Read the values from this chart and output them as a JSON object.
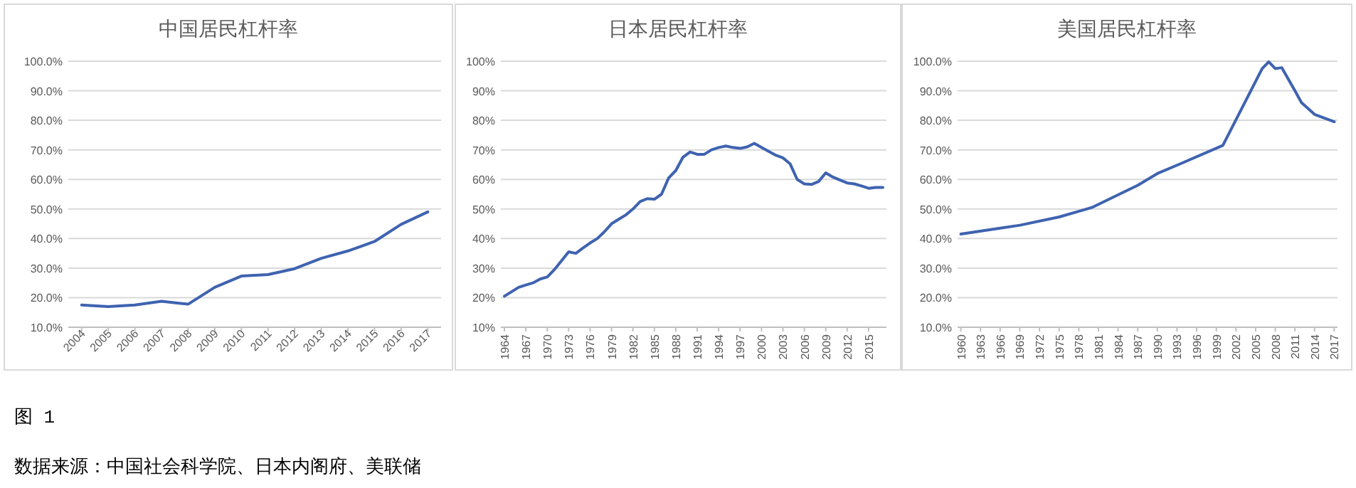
{
  "chart_data": [
    {
      "type": "line",
      "title": "中国居民杠杆率",
      "x": [
        2004,
        2005,
        2006,
        2007,
        2008,
        2009,
        2010,
        2011,
        2012,
        2013,
        2014,
        2015,
        2016,
        2017
      ],
      "series": [
        {
          "color": "#3f63b0",
          "values": [
            17.5,
            17,
            17.5,
            18.8,
            17.8,
            23.5,
            27.3,
            27.8,
            29.8,
            33.3,
            35.8,
            39,
            44.8,
            49
          ]
        }
      ],
      "xlim": [
        2003.5,
        2017.5
      ],
      "xticks": [
        2004,
        2005,
        2006,
        2007,
        2008,
        2009,
        2010,
        2011,
        2012,
        2013,
        2014,
        2015,
        2016,
        2017
      ],
      "ylim": [
        10,
        100
      ],
      "yticks": [
        {
          "value": 10,
          "label": "10.0%"
        },
        {
          "value": 20,
          "label": "20.0%"
        },
        {
          "value": 30,
          "label": "30.0%"
        },
        {
          "value": 40,
          "label": "40.0%"
        },
        {
          "value": 50,
          "label": "50.0%"
        },
        {
          "value": 60,
          "label": "60.0%"
        },
        {
          "value": 70,
          "label": "70.0%"
        },
        {
          "value": 80,
          "label": "80.0%"
        },
        {
          "value": 90,
          "label": "90.0%"
        },
        {
          "value": 100,
          "label": "100.0%"
        }
      ],
      "grid": "y",
      "marker": "none",
      "line_style": "solid",
      "annotations": [
        "图 1",
        "数据来源：中国社会科学院、日本内阁府、美联储"
      ]
    },
    {
      "type": "line",
      "title": "日本居民杠杆率",
      "x": [
        1964,
        1965,
        1966,
        1967,
        1968,
        1969,
        1970,
        1971,
        1972,
        1973,
        1974,
        1975,
        1976,
        1977,
        1978,
        1979,
        1980,
        1981,
        1982,
        1983,
        1984,
        1985,
        1986,
        1987,
        1988,
        1989,
        1990,
        1991,
        1992,
        1993,
        1994,
        1995,
        1996,
        1997,
        1998,
        1999,
        2000,
        2001,
        2002,
        2003,
        2004,
        2005,
        2006,
        2007,
        2008,
        2009,
        2010,
        2011,
        2012,
        2013,
        2014,
        2015,
        2016,
        2017
      ],
      "series": [
        {
          "color": "#3f63b0",
          "values": [
            20.5,
            22,
            23.5,
            24.3,
            25,
            26.3,
            27,
            29.5,
            32.5,
            35.5,
            35,
            36.8,
            38.5,
            40,
            42.3,
            45,
            46.5,
            48,
            50,
            52.5,
            53.5,
            53.3,
            55,
            60.5,
            63,
            67.5,
            69.3,
            68.5,
            68.5,
            70,
            70.8,
            71.3,
            70.8,
            70.5,
            71,
            72.2,
            70.8,
            69.5,
            68.2,
            67.3,
            65.3,
            60,
            58.5,
            58.3,
            59.3,
            62.2,
            60.8,
            59.8,
            58.8,
            58.5,
            57.8,
            57,
            57.3,
            57.3
          ]
        }
      ],
      "xlim": [
        1963.5,
        2017.5
      ],
      "xticks": [
        1964,
        1967,
        1970,
        1973,
        1976,
        1979,
        1982,
        1985,
        1988,
        1991,
        1994,
        1997,
        2000,
        2003,
        2006,
        2009,
        2012,
        2015
      ],
      "ylim": [
        10,
        100
      ],
      "yticks": [
        {
          "value": 10,
          "label": "10%"
        },
        {
          "value": 20,
          "label": "20%"
        },
        {
          "value": 30,
          "label": "30%"
        },
        {
          "value": 40,
          "label": "40%"
        },
        {
          "value": 50,
          "label": "50%"
        },
        {
          "value": 60,
          "label": "60%"
        },
        {
          "value": 70,
          "label": "70%"
        },
        {
          "value": 80,
          "label": "80%"
        },
        {
          "value": 90,
          "label": "90%"
        },
        {
          "value": 100,
          "label": "100%"
        }
      ],
      "grid": "y",
      "marker": "none",
      "line_style": "solid"
    },
    {
      "type": "line",
      "title": "美国居民杠杆率",
      "x": [
        1960,
        1966,
        1969,
        1975,
        1980,
        1987,
        1990,
        1993,
        2000,
        2006,
        2007,
        2008,
        2009,
        2011,
        2012,
        2014,
        2017
      ],
      "series": [
        {
          "color": "#3f63b0",
          "values": [
            41.5,
            43.5,
            44.5,
            47.3,
            50.5,
            58,
            62,
            64.8,
            71.5,
            97.5,
            99.8,
            97.5,
            97.8,
            90,
            86,
            82,
            79.5
          ]
        }
      ],
      "xlim": [
        1959.5,
        2017.5
      ],
      "xticks": [
        1960,
        1963,
        1966,
        1969,
        1972,
        1975,
        1978,
        1981,
        1984,
        1987,
        1990,
        1993,
        1996,
        1999,
        2002,
        2005,
        2008,
        2011,
        2014,
        2017
      ],
      "ylim": [
        10,
        100
      ],
      "yticks": [
        {
          "value": 10,
          "label": "10.0%"
        },
        {
          "value": 20,
          "label": "20.0%"
        },
        {
          "value": 30,
          "label": "30.0%"
        },
        {
          "value": 40,
          "label": "40.0%"
        },
        {
          "value": 50,
          "label": "50.0%"
        },
        {
          "value": 60,
          "label": "60.0%"
        },
        {
          "value": 70,
          "label": "70.0%"
        },
        {
          "value": 80,
          "label": "80.0%"
        },
        {
          "value": 90,
          "label": "90.0%"
        },
        {
          "value": 100,
          "label": "100.0%"
        }
      ],
      "grid": "y",
      "marker": "none",
      "line_style": "solid"
    }
  ]
}
